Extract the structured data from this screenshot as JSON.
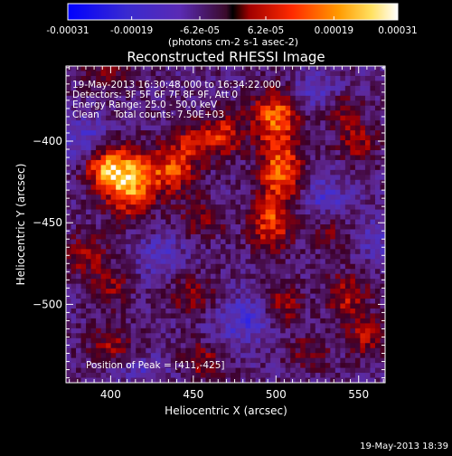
{
  "chart_data": {
    "type": "heatmap",
    "title": "Reconstructed RHESSI Image",
    "xlabel": "Heliocentric X (arcsec)",
    "ylabel": "Heliocentric Y (arcsec)",
    "xlim": [
      373,
      566
    ],
    "ylim": [
      -548,
      -354
    ],
    "x_ticks": [
      400,
      450,
      500,
      550
    ],
    "y_ticks": [
      -400,
      -450,
      -500
    ],
    "colorbar": {
      "min": -0.00031,
      "max": 0.00031,
      "tick_values": [
        -0.00031,
        -0.00019,
        -6.2e-05,
        6.2e-05,
        0.00019,
        0.00031
      ],
      "tick_labels": [
        "-0.00031",
        "-0.00019",
        "-6.2e-05",
        "6.2e-05",
        "0.00019",
        "0.00031"
      ],
      "unit_label": "(photons cm-2 s-1 asec-2)"
    },
    "annotations": {
      "time_range": "19-May-2013 16:30:48.000 to 16:34:22.000",
      "detectors": "Detectors: 3F 5F 6F 7F 8F 9F, Att 0",
      "energy_range": "Energy Range: 25.0 - 50.0 keV",
      "clean_label": "Clean",
      "total_counts": "Total counts: 7.50E+03",
      "peak": "Position of Peak = [411,-425]"
    },
    "peak_position": [
      411,
      -425
    ],
    "hotspots": [
      {
        "x": 411,
        "y": -425,
        "amp": 0.00031,
        "sx": 11,
        "sy": 14
      },
      {
        "x": 396,
        "y": -416,
        "amp": 0.00022,
        "sx": 9,
        "sy": 9
      },
      {
        "x": 438,
        "y": -418,
        "amp": 0.00022,
        "sx": 10,
        "sy": 10
      },
      {
        "x": 452,
        "y": -400,
        "amp": 0.00016,
        "sx": 10,
        "sy": 8
      },
      {
        "x": 470,
        "y": -395,
        "amp": 0.00016,
        "sx": 8,
        "sy": 10
      },
      {
        "x": 500,
        "y": -385,
        "amp": 0.00026,
        "sx": 10,
        "sy": 12
      },
      {
        "x": 503,
        "y": -418,
        "amp": 0.00026,
        "sx": 9,
        "sy": 12
      },
      {
        "x": 497,
        "y": -450,
        "amp": 0.00022,
        "sx": 9,
        "sy": 12
      },
      {
        "x": 455,
        "y": -448,
        "amp": 0.00012,
        "sx": 10,
        "sy": 8
      },
      {
        "x": 385,
        "y": -470,
        "amp": 0.00014,
        "sx": 9,
        "sy": 9
      },
      {
        "x": 400,
        "y": -490,
        "amp": 0.00012,
        "sx": 8,
        "sy": 8
      },
      {
        "x": 450,
        "y": -495,
        "amp": 0.00012,
        "sx": 10,
        "sy": 9
      },
      {
        "x": 505,
        "y": -500,
        "amp": 0.00014,
        "sx": 8,
        "sy": 10
      },
      {
        "x": 543,
        "y": -495,
        "amp": 0.00016,
        "sx": 9,
        "sy": 10
      },
      {
        "x": 555,
        "y": -520,
        "amp": 0.00014,
        "sx": 8,
        "sy": 9
      },
      {
        "x": 520,
        "y": -530,
        "amp": 0.0001,
        "sx": 10,
        "sy": 8
      },
      {
        "x": 400,
        "y": -525,
        "amp": 0.00012,
        "sx": 10,
        "sy": 9
      },
      {
        "x": 455,
        "y": -535,
        "amp": 0.00012,
        "sx": 10,
        "sy": 9
      },
      {
        "x": 550,
        "y": -400,
        "amp": 0.00014,
        "sx": 9,
        "sy": 9
      },
      {
        "x": 540,
        "y": -380,
        "amp": 0.00012,
        "sx": 8,
        "sy": 8
      },
      {
        "x": 400,
        "y": -360,
        "amp": 0.0001,
        "sx": 12,
        "sy": 8
      },
      {
        "x": 532,
        "y": -455,
        "amp": 0.0001,
        "sx": 8,
        "sy": 8
      },
      {
        "x": 385,
        "y": -400,
        "amp": -0.00012,
        "sx": 10,
        "sy": 10
      },
      {
        "x": 525,
        "y": -370,
        "amp": -0.0001,
        "sx": 12,
        "sy": 8
      },
      {
        "x": 430,
        "y": -470,
        "amp": -0.0001,
        "sx": 10,
        "sy": 9
      },
      {
        "x": 480,
        "y": -510,
        "amp": -0.00012,
        "sx": 14,
        "sy": 10
      },
      {
        "x": 530,
        "y": -435,
        "amp": -0.0001,
        "sx": 10,
        "sy": 10
      },
      {
        "x": 420,
        "y": -540,
        "amp": -8e-05,
        "sx": 12,
        "sy": 6
      },
      {
        "x": 560,
        "y": -460,
        "amp": -8e-05,
        "sx": 8,
        "sy": 10
      }
    ]
  },
  "footer": {
    "timestamp": "19-May-2013 18:39"
  }
}
